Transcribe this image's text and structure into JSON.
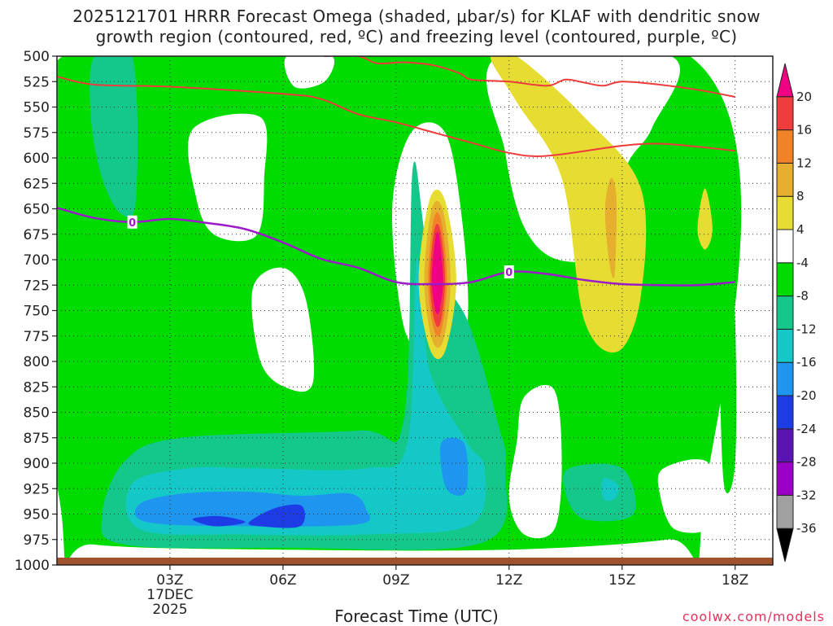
{
  "title": {
    "line1": "2025121701 HRRR Forecast Omega (shaded, μbar/s) for KLAF with dendritic snow",
    "line2": "growth region (contoured, red, ºC) and freezing level (contoured, purple, ºC)"
  },
  "credit": "coolwx.com/models",
  "chart_data": {
    "type": "heatmap",
    "title": "2025121701 HRRR Forecast Omega (shaded, μbar/s) for KLAF with dendritic snow growth region (contoured, red, ºC) and freezing level (contoured, purple, ºC)",
    "xlabel": "Forecast Time (UTC)",
    "ylabel": "",
    "x_range_hours_utc": [
      0,
      18
    ],
    "x_ticks": [
      {
        "hour": 3,
        "label": "03Z",
        "sub": [
          "17DEC",
          "2025"
        ]
      },
      {
        "hour": 6,
        "label": "06Z"
      },
      {
        "hour": 9,
        "label": "09Z"
      },
      {
        "hour": 12,
        "label": "12Z"
      },
      {
        "hour": 15,
        "label": "15Z"
      },
      {
        "hour": 18,
        "label": "18Z"
      }
    ],
    "y_axis": {
      "unit": "hPa",
      "reversed": true,
      "range": [
        1000,
        500
      ],
      "ticks": [
        500,
        525,
        550,
        575,
        600,
        625,
        650,
        675,
        700,
        725,
        750,
        775,
        800,
        825,
        850,
        875,
        900,
        925,
        950,
        975,
        1000
      ]
    },
    "grid": true,
    "colorbar": {
      "levels": [
        -36,
        -32,
        -28,
        -24,
        -20,
        -16,
        -12,
        -8,
        -4,
        4,
        8,
        12,
        16,
        20
      ],
      "colors": [
        "#000000",
        "#a0a0a0",
        "#9b00c8",
        "#5a14b4",
        "#1e3ce6",
        "#1e96f0",
        "#14c8c8",
        "#14c88c",
        "#00dc00",
        "#ffffff",
        "#e6dc32",
        "#e6af2d",
        "#f08228",
        "#f03c3c",
        "#f00082"
      ]
    },
    "omega_regions": [
      {
        "level": "-8 to -4",
        "color": "#00dc00",
        "polygon": [
          [
            0.15,
            500
          ],
          [
            16.8,
            500
          ],
          [
            17.1,
            960
          ],
          [
            16.2,
            975
          ],
          [
            12,
            985
          ],
          [
            6,
            985
          ],
          [
            1,
            980
          ],
          [
            0.15,
            960
          ]
        ]
      },
      {
        "level": "-8 to -4",
        "color": "#00dc00",
        "polygon": [
          [
            17.8,
            690
          ],
          [
            18.0,
            760
          ],
          [
            18.0,
            900
          ],
          [
            17.7,
            920
          ],
          [
            17.6,
            780
          ]
        ]
      },
      {
        "level": "-4 to 4",
        "color": "#ffffff",
        "polygon": [
          [
            3.6,
            572
          ],
          [
            5.4,
            560
          ],
          [
            5.5,
            620
          ],
          [
            5.3,
            676
          ],
          [
            4.2,
            676
          ],
          [
            3.7,
            640
          ]
        ]
      },
      {
        "level": "-4 to 4",
        "color": "#ffffff",
        "polygon": [
          [
            5.2,
            728
          ],
          [
            6.0,
            708
          ],
          [
            6.6,
            738
          ],
          [
            6.8,
            820
          ],
          [
            6.1,
            826
          ],
          [
            5.4,
            800
          ]
        ]
      },
      {
        "level": "-4 to 4",
        "color": "#ffffff",
        "polygon": [
          [
            9.4,
            575
          ],
          [
            10.3,
            575
          ],
          [
            10.75,
            660
          ],
          [
            10.9,
            760
          ],
          [
            10.4,
            790
          ],
          [
            9.8,
            792
          ],
          [
            9.2,
            765
          ],
          [
            8.9,
            650
          ]
        ]
      },
      {
        "level": "-4 to 4",
        "color": "#ffffff",
        "polygon": [
          [
            11.7,
            500
          ],
          [
            16.3,
            500
          ],
          [
            15.8,
            570
          ],
          [
            15.1,
            610
          ],
          [
            14.6,
            690
          ],
          [
            13.3,
            700
          ],
          [
            12.4,
            668
          ],
          [
            11.9,
            595
          ]
        ]
      },
      {
        "level": "-4 to 4",
        "color": "#ffffff",
        "polygon": [
          [
            6.1,
            500
          ],
          [
            7.3,
            500
          ],
          [
            7.1,
            525
          ],
          [
            6.3,
            530
          ]
        ]
      },
      {
        "level": "-4 to 4",
        "color": "#ffffff",
        "polygon": [
          [
            12.4,
            835
          ],
          [
            13.2,
            828
          ],
          [
            13.4,
            900
          ],
          [
            13.2,
            965
          ],
          [
            12.4,
            970
          ],
          [
            12.0,
            935
          ],
          [
            12.2,
            880
          ]
        ]
      },
      {
        "level": "-4 to 4",
        "color": "#ffffff",
        "polygon": [
          [
            16.1,
            905
          ],
          [
            17.3,
            900
          ],
          [
            17.4,
            960
          ],
          [
            16.4,
            965
          ],
          [
            16.0,
            930
          ]
        ]
      },
      {
        "level": "-12 to -8",
        "color": "#14c88c",
        "polygon": [
          [
            1.0,
            500
          ],
          [
            2.0,
            500
          ],
          [
            2.1,
            640
          ],
          [
            1.7,
            655
          ],
          [
            1.2,
            620
          ],
          [
            0.9,
            560
          ]
        ]
      },
      {
        "level": "-12 to -8",
        "color": "#14c88c",
        "polygon": [
          [
            1.8,
            898
          ],
          [
            3.3,
            875
          ],
          [
            8.0,
            868
          ],
          [
            9.2,
            858
          ],
          [
            9.45,
            608
          ],
          [
            9.9,
            700
          ],
          [
            10.9,
            760
          ],
          [
            11.7,
            860
          ],
          [
            11.9,
            905
          ],
          [
            11.3,
            978
          ],
          [
            6.0,
            983
          ],
          [
            1.8,
            980
          ],
          [
            1.2,
            952
          ]
        ]
      },
      {
        "level": "-12 to -8",
        "color": "#14c88c",
        "polygon": [
          [
            13.6,
            905
          ],
          [
            15.0,
            905
          ],
          [
            15.3,
            950
          ],
          [
            14.0,
            955
          ],
          [
            13.5,
            930
          ]
        ]
      },
      {
        "level": "-16 to -12",
        "color": "#14c8c8",
        "polygon": [
          [
            2.0,
            920
          ],
          [
            3.5,
            905
          ],
          [
            5.2,
            905
          ],
          [
            8.2,
            905
          ],
          [
            9.3,
            880
          ],
          [
            9.55,
            700
          ],
          [
            9.9,
            810
          ],
          [
            10.9,
            880
          ],
          [
            11.35,
            905
          ],
          [
            11.0,
            960
          ],
          [
            8.3,
            970
          ],
          [
            5.0,
            970
          ],
          [
            2.2,
            965
          ]
        ]
      },
      {
        "level": "-16 to -12",
        "color": "#14c8c8",
        "polygon": [
          [
            14.5,
            915
          ],
          [
            14.9,
            922
          ],
          [
            14.8,
            935
          ],
          [
            14.5,
            935
          ]
        ]
      },
      {
        "level": "-20 to -16",
        "color": "#1e96f0",
        "polygon": [
          [
            2.2,
            940
          ],
          [
            3.3,
            930
          ],
          [
            5.0,
            928
          ],
          [
            6.5,
            932
          ],
          [
            7.8,
            930
          ],
          [
            8.2,
            945
          ],
          [
            8.0,
            960
          ],
          [
            5.0,
            962
          ],
          [
            2.4,
            958
          ]
        ]
      },
      {
        "level": "-20 to -16",
        "color": "#1e96f0",
        "polygon": [
          [
            10.2,
            880
          ],
          [
            10.8,
            880
          ],
          [
            10.9,
            920
          ],
          [
            10.7,
            932
          ],
          [
            10.3,
            922
          ]
        ]
      },
      {
        "level": "-24 to -20",
        "color": "#1e3ce6",
        "polygon": [
          [
            3.6,
            955
          ],
          [
            4.3,
            952
          ],
          [
            5.0,
            958
          ],
          [
            4.2,
            962
          ]
        ]
      },
      {
        "level": "-24 to -20",
        "color": "#1e3ce6",
        "polygon": [
          [
            5.1,
            958
          ],
          [
            5.8,
            944
          ],
          [
            6.5,
            942
          ],
          [
            6.45,
            962
          ],
          [
            5.4,
            962
          ]
        ]
      },
      {
        "level": "4 to 8",
        "color": "#e6dc32",
        "polygon": [
          [
            11.5,
            500
          ],
          [
            12.2,
            500
          ],
          [
            14.0,
            560
          ],
          [
            15.5,
            630
          ],
          [
            15.5,
            735
          ],
          [
            14.9,
            790
          ],
          [
            14.0,
            760
          ],
          [
            13.4,
            620
          ],
          [
            12.2,
            545
          ]
        ]
      },
      {
        "level": "4 to 8",
        "color": "#e6dc32",
        "polygon": [
          [
            17.2,
            630
          ],
          [
            17.4,
            670
          ],
          [
            17.2,
            690
          ],
          [
            17.0,
            670
          ]
        ]
      },
      {
        "level": "4 to 8",
        "color": "#e6dc32",
        "polygon": [
          [
            9.9,
            640
          ],
          [
            10.3,
            642
          ],
          [
            10.6,
            720
          ],
          [
            10.3,
            790
          ],
          [
            9.9,
            788
          ],
          [
            9.6,
            720
          ]
        ]
      },
      {
        "level": "8 to 12",
        "color": "#e6af2d",
        "polygon": [
          [
            14.7,
            620
          ],
          [
            14.85,
            640
          ],
          [
            14.8,
            715
          ],
          [
            14.65,
            700
          ],
          [
            14.55,
            650
          ]
        ]
      },
      {
        "level": "8 to 12",
        "color": "#e6af2d",
        "polygon": [
          [
            9.95,
            650
          ],
          [
            10.25,
            652
          ],
          [
            10.45,
            720
          ],
          [
            10.25,
            780
          ],
          [
            9.95,
            778
          ],
          [
            9.75,
            720
          ]
        ]
      },
      {
        "level": "12 to 16",
        "color": "#f08228",
        "polygon": [
          [
            10.0,
            660
          ],
          [
            10.2,
            662
          ],
          [
            10.35,
            720
          ],
          [
            10.2,
            770
          ],
          [
            10.0,
            768
          ],
          [
            9.85,
            720
          ]
        ]
      },
      {
        "level": "16 to 20",
        "color": "#f03c3c",
        "polygon": [
          [
            10.02,
            670
          ],
          [
            10.18,
            672
          ],
          [
            10.3,
            720
          ],
          [
            10.18,
            762
          ],
          [
            10.02,
            760
          ],
          [
            9.9,
            720
          ]
        ]
      },
      {
        "level": ">20",
        "color": "#f00082",
        "polygon": [
          [
            10.05,
            678
          ],
          [
            10.15,
            678
          ],
          [
            10.25,
            720
          ],
          [
            10.15,
            750
          ],
          [
            10.05,
            750
          ],
          [
            9.95,
            720
          ]
        ]
      }
    ],
    "dgz_contours_red": [
      {
        "points": [
          [
            0,
            520
          ],
          [
            1,
            528
          ],
          [
            3,
            530
          ],
          [
            6,
            537
          ],
          [
            7,
            542
          ],
          [
            8,
            557
          ],
          [
            9,
            565
          ],
          [
            10,
            575
          ],
          [
            11,
            585
          ],
          [
            12,
            595
          ],
          [
            13,
            598
          ],
          [
            15,
            588
          ],
          [
            16,
            586
          ],
          [
            17,
            589
          ],
          [
            18,
            593
          ]
        ]
      },
      {
        "points": [
          [
            7.1,
            500
          ],
          [
            8,
            500
          ],
          [
            8.5,
            507
          ],
          [
            9.2,
            506
          ],
          [
            10,
            509
          ],
          [
            10.7,
            517
          ],
          [
            11,
            523
          ],
          [
            12,
            525
          ],
          [
            13,
            529
          ],
          [
            13.5,
            523
          ],
          [
            14,
            526
          ],
          [
            14.5,
            529
          ],
          [
            15,
            525
          ],
          [
            16,
            528
          ],
          [
            17,
            533
          ],
          [
            18,
            540
          ]
        ]
      }
    ],
    "freezing_level_purple": {
      "label": "0",
      "label_hours": [
        2,
        12
      ],
      "points": [
        [
          0,
          649
        ],
        [
          1,
          659
        ],
        [
          2,
          663
        ],
        [
          3,
          660
        ],
        [
          4,
          664
        ],
        [
          5,
          670
        ],
        [
          6,
          683
        ],
        [
          7,
          699
        ],
        [
          8,
          708
        ],
        [
          9,
          722
        ],
        [
          10,
          724
        ],
        [
          11,
          722
        ],
        [
          12,
          712
        ],
        [
          13,
          714
        ],
        [
          14,
          720
        ],
        [
          15,
          724
        ],
        [
          16,
          725
        ],
        [
          17,
          725
        ],
        [
          18,
          722
        ]
      ]
    }
  }
}
